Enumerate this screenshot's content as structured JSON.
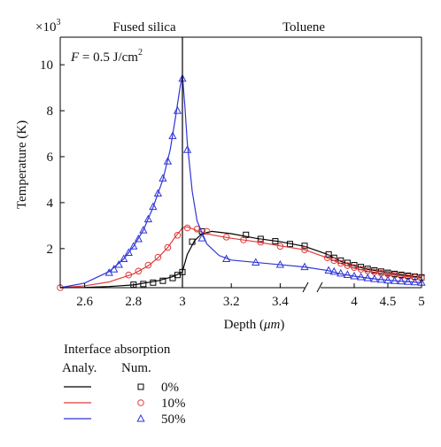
{
  "chart_data": {
    "type": "line",
    "multiplier_label": "×10",
    "multiplier_exp": "3",
    "region_left": "Fused silica",
    "region_right": "Toluene",
    "annotation_prefix": "F",
    "annotation_text": " = 0.5 J/cm",
    "annotation_sup": "2",
    "xlabel_prefix": "Depth (",
    "xlabel_unit": "μm",
    "xlabel_suffix": ")",
    "ylabel": "Temperature (K)",
    "ylim": [
      0.3,
      11.2
    ],
    "yticks": [
      2,
      4,
      6,
      8,
      10
    ],
    "ytick_labels": [
      "2",
      "4",
      "6",
      "8",
      "10"
    ],
    "x_segment1": {
      "range": [
        2.5,
        3.5
      ],
      "ticks": [
        2.6,
        2.8,
        3.0,
        3.2,
        3.4
      ],
      "tick_labels": [
        "2.6",
        "2.8",
        "3",
        "3.2",
        "3.4"
      ]
    },
    "x_segment2": {
      "range": [
        3.5,
        5.0
      ],
      "ticks": [
        4.0,
        4.5,
        5.0
      ],
      "tick_labels": [
        "4",
        "4.5",
        "5"
      ]
    },
    "interface_x": 3.0,
    "legend": {
      "title": "Interface absorption",
      "col_analytic": "Analy.",
      "col_numeric": "Num.",
      "entries": [
        "0%",
        "10%",
        "50%"
      ]
    },
    "series": [
      {
        "label": "0%",
        "color": "#000000",
        "marker": "square",
        "analytic": [
          [
            2.5,
            0.3
          ],
          [
            2.6,
            0.31
          ],
          [
            2.7,
            0.35
          ],
          [
            2.8,
            0.42
          ],
          [
            2.9,
            0.6
          ],
          [
            2.96,
            0.78
          ],
          [
            2.995,
            0.95
          ],
          [
            3.0,
            1.0
          ],
          [
            3.02,
            1.75
          ],
          [
            3.05,
            2.35
          ],
          [
            3.08,
            2.65
          ],
          [
            3.12,
            2.75
          ],
          [
            3.2,
            2.65
          ],
          [
            3.3,
            2.45
          ],
          [
            3.4,
            2.3
          ],
          [
            3.5,
            2.1
          ],
          [
            3.6,
            1.75
          ],
          [
            3.8,
            1.45
          ],
          [
            4.0,
            1.25
          ],
          [
            4.2,
            1.1
          ],
          [
            4.4,
            1.0
          ],
          [
            4.6,
            0.9
          ],
          [
            4.8,
            0.82
          ],
          [
            5.0,
            0.75
          ]
        ],
        "numeric": [
          [
            2.8,
            0.43
          ],
          [
            2.84,
            0.46
          ],
          [
            2.88,
            0.52
          ],
          [
            2.92,
            0.6
          ],
          [
            2.96,
            0.72
          ],
          [
            2.98,
            0.85
          ],
          [
            3.0,
            0.98
          ],
          [
            3.04,
            2.3
          ],
          [
            3.08,
            2.75
          ],
          [
            3.26,
            2.6
          ],
          [
            3.32,
            2.42
          ],
          [
            3.38,
            2.32
          ],
          [
            3.44,
            2.2
          ],
          [
            3.5,
            2.12
          ],
          [
            3.62,
            1.75
          ],
          [
            3.7,
            1.6
          ],
          [
            3.8,
            1.48
          ],
          [
            3.9,
            1.38
          ],
          [
            4.0,
            1.28
          ],
          [
            4.1,
            1.2
          ],
          [
            4.2,
            1.12
          ],
          [
            4.3,
            1.05
          ],
          [
            4.4,
            1.0
          ],
          [
            4.5,
            0.95
          ],
          [
            4.6,
            0.9
          ],
          [
            4.7,
            0.86
          ],
          [
            4.8,
            0.82
          ],
          [
            4.9,
            0.78
          ],
          [
            5.0,
            0.75
          ]
        ]
      },
      {
        "label": "10%",
        "color": "#e23b3b",
        "marker": "circle",
        "analytic": [
          [
            2.5,
            0.3
          ],
          [
            2.6,
            0.38
          ],
          [
            2.7,
            0.55
          ],
          [
            2.8,
            0.9
          ],
          [
            2.86,
            1.25
          ],
          [
            2.9,
            1.6
          ],
          [
            2.94,
            2.05
          ],
          [
            2.97,
            2.5
          ],
          [
            3.0,
            2.9
          ],
          [
            3.02,
            2.95
          ],
          [
            3.06,
            2.78
          ],
          [
            3.12,
            2.6
          ],
          [
            3.2,
            2.45
          ],
          [
            3.3,
            2.3
          ],
          [
            3.4,
            2.12
          ],
          [
            3.5,
            1.95
          ],
          [
            3.6,
            1.6
          ],
          [
            3.8,
            1.35
          ],
          [
            4.0,
            1.15
          ],
          [
            4.2,
            1.02
          ],
          [
            4.4,
            0.92
          ],
          [
            4.6,
            0.84
          ],
          [
            4.8,
            0.77
          ],
          [
            5.0,
            0.72
          ]
        ],
        "numeric": [
          [
            2.5,
            0.3
          ],
          [
            2.78,
            0.85
          ],
          [
            2.82,
            1.02
          ],
          [
            2.86,
            1.28
          ],
          [
            2.9,
            1.62
          ],
          [
            2.94,
            2.05
          ],
          [
            2.98,
            2.58
          ],
          [
            3.02,
            2.9
          ],
          [
            3.06,
            2.85
          ],
          [
            3.1,
            2.75
          ],
          [
            3.18,
            2.5
          ],
          [
            3.25,
            2.38
          ],
          [
            3.32,
            2.28
          ],
          [
            3.4,
            2.1
          ],
          [
            3.5,
            1.95
          ],
          [
            3.6,
            1.6
          ],
          [
            3.7,
            1.48
          ],
          [
            3.8,
            1.36
          ],
          [
            3.9,
            1.26
          ],
          [
            4.0,
            1.18
          ],
          [
            4.1,
            1.1
          ],
          [
            4.2,
            1.04
          ],
          [
            4.3,
            0.98
          ],
          [
            4.4,
            0.93
          ],
          [
            4.5,
            0.89
          ],
          [
            4.6,
            0.85
          ],
          [
            4.7,
            0.81
          ],
          [
            4.8,
            0.78
          ],
          [
            4.9,
            0.75
          ],
          [
            5.0,
            0.72
          ]
        ]
      },
      {
        "label": "50%",
        "color": "#2f35d8",
        "marker": "triangle",
        "analytic": [
          [
            2.5,
            0.3
          ],
          [
            2.6,
            0.5
          ],
          [
            2.7,
            1.0
          ],
          [
            2.76,
            1.55
          ],
          [
            2.8,
            2.1
          ],
          [
            2.84,
            2.8
          ],
          [
            2.88,
            3.8
          ],
          [
            2.92,
            5.0
          ],
          [
            2.95,
            6.3
          ],
          [
            2.97,
            7.6
          ],
          [
            2.99,
            9.0
          ],
          [
            3.0,
            9.55
          ],
          [
            3.01,
            8.2
          ],
          [
            3.02,
            6.6
          ],
          [
            3.04,
            4.5
          ],
          [
            3.06,
            3.2
          ],
          [
            3.1,
            2.2
          ],
          [
            3.15,
            1.7
          ],
          [
            3.2,
            1.5
          ],
          [
            3.3,
            1.4
          ],
          [
            3.4,
            1.3
          ],
          [
            3.5,
            1.2
          ],
          [
            3.6,
            1.05
          ],
          [
            3.8,
            0.9
          ],
          [
            4.0,
            0.8
          ],
          [
            4.2,
            0.72
          ],
          [
            4.4,
            0.65
          ],
          [
            4.6,
            0.6
          ],
          [
            4.8,
            0.56
          ],
          [
            5.0,
            0.52
          ]
        ],
        "numeric": [
          [
            2.7,
            0.95
          ],
          [
            2.72,
            1.1
          ],
          [
            2.74,
            1.3
          ],
          [
            2.76,
            1.55
          ],
          [
            2.78,
            1.82
          ],
          [
            2.8,
            2.1
          ],
          [
            2.82,
            2.42
          ],
          [
            2.84,
            2.8
          ],
          [
            2.86,
            3.28
          ],
          [
            2.88,
            3.82
          ],
          [
            2.9,
            4.4
          ],
          [
            2.92,
            5.05
          ],
          [
            2.94,
            5.8
          ],
          [
            2.96,
            6.9
          ],
          [
            2.98,
            8.0
          ],
          [
            3.0,
            9.4
          ],
          [
            3.02,
            6.3
          ],
          [
            3.08,
            2.45
          ],
          [
            3.18,
            1.55
          ],
          [
            3.3,
            1.4
          ],
          [
            3.4,
            1.3
          ],
          [
            3.5,
            1.2
          ],
          [
            3.62,
            1.05
          ],
          [
            3.7,
            1.0
          ],
          [
            3.8,
            0.92
          ],
          [
            3.9,
            0.86
          ],
          [
            4.0,
            0.8
          ],
          [
            4.1,
            0.76
          ],
          [
            4.2,
            0.72
          ],
          [
            4.3,
            0.68
          ],
          [
            4.4,
            0.65
          ],
          [
            4.5,
            0.62
          ],
          [
            4.6,
            0.6
          ],
          [
            4.7,
            0.58
          ],
          [
            4.8,
            0.56
          ],
          [
            4.9,
            0.54
          ],
          [
            5.0,
            0.52
          ]
        ]
      }
    ]
  }
}
